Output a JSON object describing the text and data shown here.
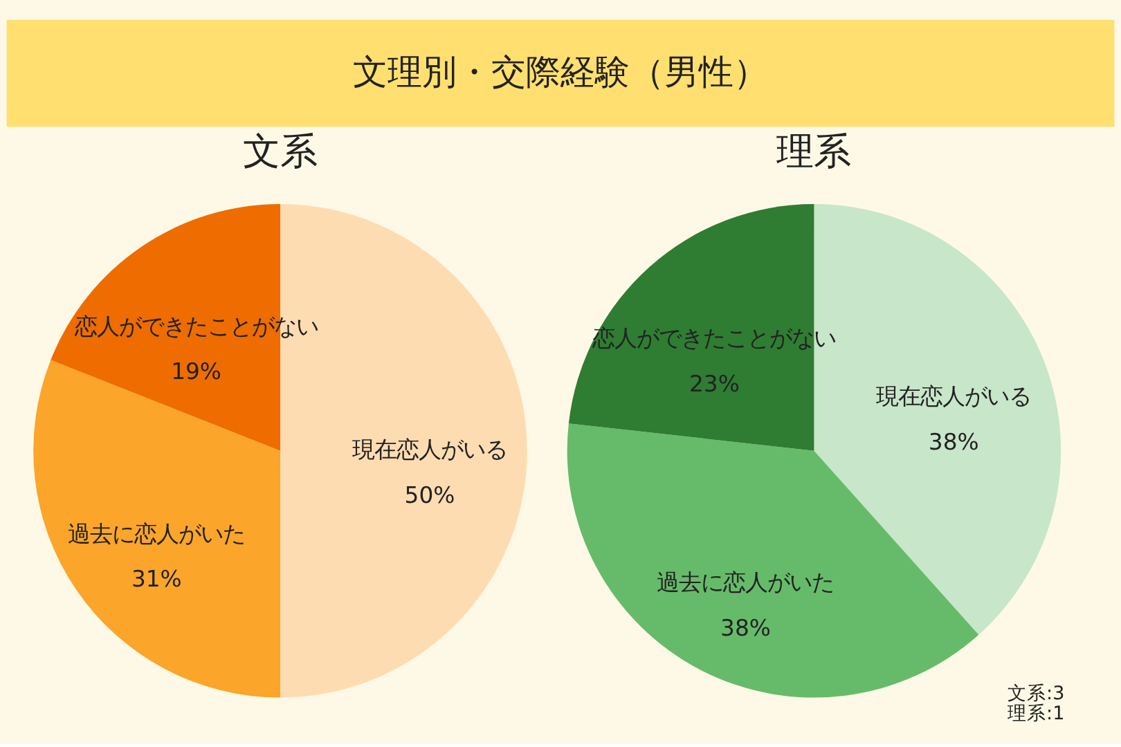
{
  "chart_data": [
    {
      "type": "pie",
      "title": "文系",
      "annotations": [
        "文理別・交際経験（男性）"
      ],
      "categories": [
        "現在恋人がいる",
        "過去に恋人がいた",
        "恋人ができたことがない"
      ],
      "values": [
        50,
        31,
        19
      ],
      "value_labels": [
        "50%",
        "31%",
        "19%"
      ],
      "colors": [
        "#fedcb2",
        "#fba52b",
        "#ee6c00"
      ]
    },
    {
      "type": "pie",
      "title": "理系",
      "annotations": [
        "文系:3",
        "理系:1"
      ],
      "categories": [
        "現在恋人がいる",
        "過去に恋人がいた",
        "恋人ができたことがない"
      ],
      "values": [
        38,
        38,
        23
      ],
      "value_labels": [
        "38%",
        "38%",
        "23%"
      ],
      "colors": [
        "#c8e6ca",
        "#66bb6a",
        "#2e7d32"
      ]
    }
  ]
}
